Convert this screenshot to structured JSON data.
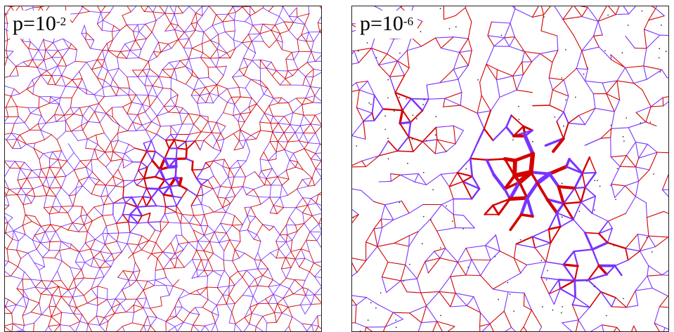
{
  "colors": {
    "red": "#d40000",
    "blue": "#7a33ff",
    "border": "#222222",
    "background": "#ffffff"
  },
  "panels": [
    {
      "label": {
        "base": "p=10",
        "exponent": "-2"
      },
      "pressure": 0.01
    },
    {
      "label": {
        "base": "p=10",
        "exponent": "-6"
      },
      "pressure": 1e-06
    }
  ]
}
